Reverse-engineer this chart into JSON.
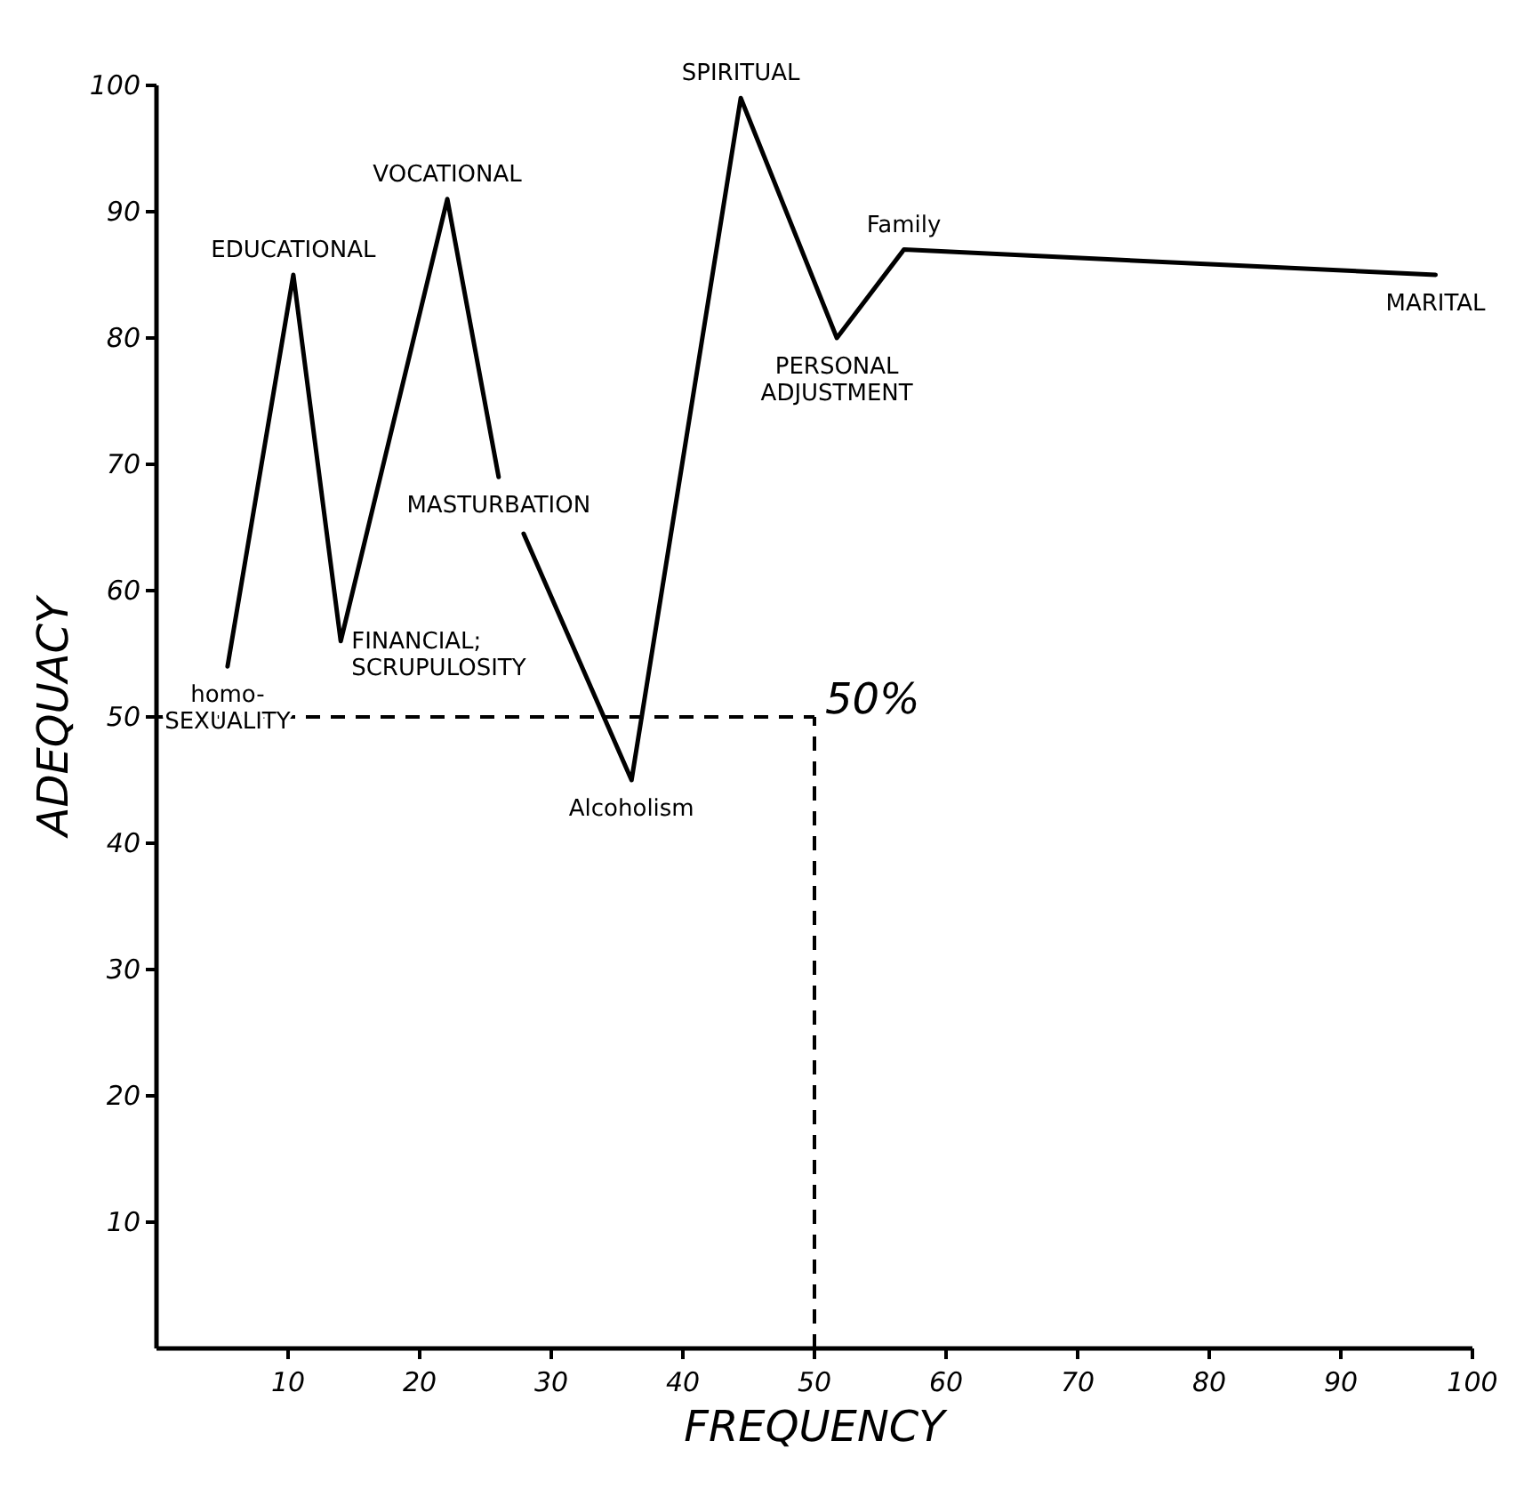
{
  "chart_data": {
    "type": "line",
    "xlabel": "FREQUENCY",
    "ylabel": "ADEQUACY",
    "xlim": [
      0,
      100
    ],
    "ylim": [
      0,
      100
    ],
    "xticks": [
      10,
      20,
      30,
      40,
      50,
      60,
      70,
      80,
      90,
      100
    ],
    "yticks": [
      10,
      20,
      30,
      40,
      50,
      60,
      70,
      80,
      90,
      100
    ],
    "grid": false,
    "marker": "none",
    "line_style": "solid",
    "series": [
      {
        "color": "#000000",
        "x": [
          5.4,
          10.4,
          14.0,
          22.1,
          26.0,
          27.0,
          27.9,
          36.1,
          44.4,
          51.7,
          56.8,
          97.2
        ],
        "values": [
          54,
          85,
          56,
          91,
          69,
          null,
          64.5,
          45,
          99,
          80,
          87,
          85
        ]
      }
    ],
    "ref_lines": [
      {
        "axis": "y",
        "value": 50,
        "label": "50%",
        "line_style": "dashed",
        "color": "#000000"
      },
      {
        "axis": "x",
        "value": 50,
        "line_style": "dashed",
        "color": "#000000"
      }
    ],
    "annotations": [
      {
        "text": "homo-\nSEXUALITY",
        "x": 5.4,
        "y": 54
      },
      {
        "text": "EDUCATIONAL",
        "x": 10.4,
        "y": 85
      },
      {
        "text": "FINANCIAL;\nSCRUPULOSITY",
        "x": 14.0,
        "y": 56
      },
      {
        "text": "VOCATIONAL",
        "x": 22.1,
        "y": 91
      },
      {
        "text": "MASTURBATION",
        "x": 26.0,
        "y": 69
      },
      {
        "text": "Alcoholism",
        "x": 36.1,
        "y": 45
      },
      {
        "text": "SPIRITUAL",
        "x": 44.4,
        "y": 99
      },
      {
        "text": "PERSONAL\nADJUSTMENT",
        "x": 51.7,
        "y": 80
      },
      {
        "text": "Family",
        "x": 56.8,
        "y": 87
      },
      {
        "text": "MARITAL",
        "x": 97.2,
        "y": 85
      }
    ]
  }
}
